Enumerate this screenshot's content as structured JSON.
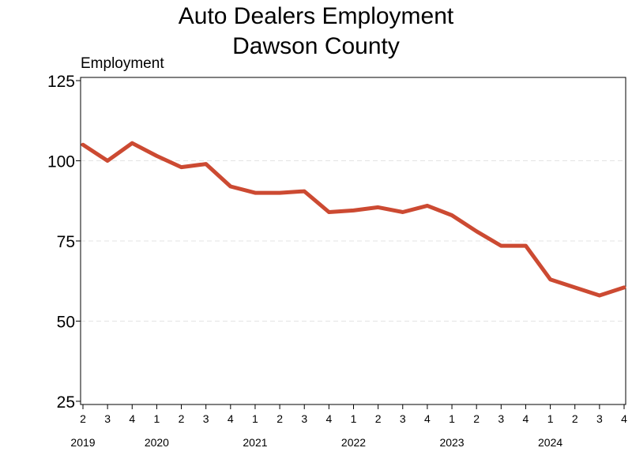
{
  "chart_data": {
    "type": "line",
    "title_line1": "Auto Dealers Employment",
    "title_line2": "Dawson County",
    "ylabel": "Employment",
    "xlabel": "",
    "ylim": [
      24,
      126
    ],
    "yticks": [
      25,
      50,
      75,
      100,
      125
    ],
    "grid": true,
    "line_color": "#cc4a32",
    "x": [
      "2019 Q2",
      "2019 Q3",
      "2019 Q4",
      "2020 Q1",
      "2020 Q2",
      "2020 Q3",
      "2020 Q4",
      "2021 Q1",
      "2021 Q2",
      "2021 Q3",
      "2021 Q4",
      "2022 Q1",
      "2022 Q2",
      "2022 Q3",
      "2022 Q4",
      "2023 Q1",
      "2023 Q2",
      "2023 Q3",
      "2023 Q4",
      "2024 Q1",
      "2024 Q2",
      "2024 Q3",
      "2024 Q4"
    ],
    "quarter_labels": [
      "2",
      "3",
      "4",
      "1",
      "2",
      "3",
      "4",
      "1",
      "2",
      "3",
      "4",
      "1",
      "2",
      "3",
      "4",
      "1",
      "2",
      "3",
      "4",
      "1",
      "2",
      "3",
      "4"
    ],
    "years": [
      {
        "label": "2019",
        "index": 0
      },
      {
        "label": "2020",
        "index": 3
      },
      {
        "label": "2021",
        "index": 7
      },
      {
        "label": "2022",
        "index": 11
      },
      {
        "label": "2023",
        "index": 15
      },
      {
        "label": "2024",
        "index": 19
      }
    ],
    "series": [
      {
        "values": [
          105,
          100,
          105.5,
          101.5,
          98,
          99,
          92,
          90,
          90,
          90.5,
          84,
          84.5,
          85.5,
          84,
          86,
          83,
          78,
          73.5,
          73.5,
          63,
          60.5,
          58,
          60.5
        ]
      }
    ]
  }
}
